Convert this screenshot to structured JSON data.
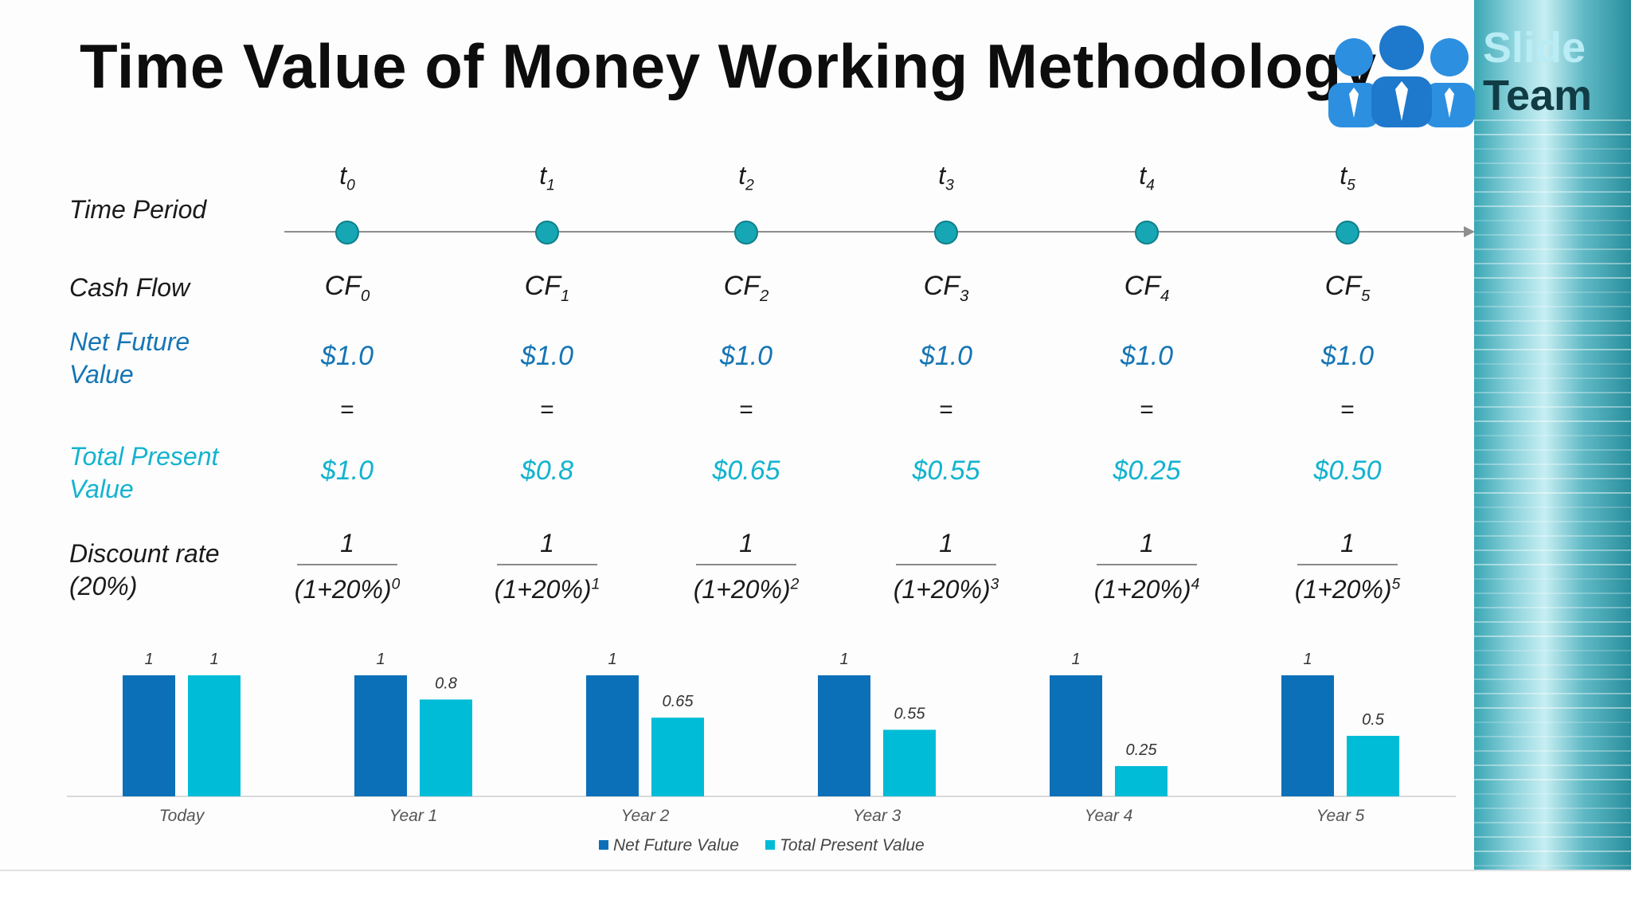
{
  "title": "Time Value of Money Working Methodology",
  "logo": {
    "line1": "Slide",
    "line2": "Team"
  },
  "row_labels": {
    "time_period": "Time Period",
    "cash_flow": "Cash Flow",
    "net_future_value_1": "Net Future",
    "net_future_value_2": "Value",
    "total_present_value_1": "Total Present",
    "total_present_value_2": "Value",
    "discount_rate_1": "Discount rate",
    "discount_rate_2": "(20%)"
  },
  "periods": [
    {
      "t": "t",
      "t_sub": "0",
      "cf": "CF",
      "cf_sub": "0",
      "nfv": "$1.0",
      "eq": "=",
      "tpv": "$1.0",
      "num": "1",
      "den": "(1+20%)",
      "den_sup": "0"
    },
    {
      "t": "t",
      "t_sub": "1",
      "cf": "CF",
      "cf_sub": "1",
      "nfv": "$1.0",
      "eq": "=",
      "tpv": "$0.8",
      "num": "1",
      "den": "(1+20%)",
      "den_sup": "1"
    },
    {
      "t": "t",
      "t_sub": "2",
      "cf": "CF",
      "cf_sub": "2",
      "nfv": "$1.0",
      "eq": "=",
      "tpv": "$0.65",
      "num": "1",
      "den": "(1+20%)",
      "den_sup": "2"
    },
    {
      "t": "t",
      "t_sub": "3",
      "cf": "CF",
      "cf_sub": "3",
      "nfv": "$1.0",
      "eq": "=",
      "tpv": "$0.55",
      "num": "1",
      "den": "(1+20%)",
      "den_sup": "3"
    },
    {
      "t": "t",
      "t_sub": "4",
      "cf": "CF",
      "cf_sub": "4",
      "nfv": "$1.0",
      "eq": "=",
      "tpv": "$0.25",
      "num": "1",
      "den": "(1+20%)",
      "den_sup": "4"
    },
    {
      "t": "t",
      "t_sub": "5",
      "cf": "CF",
      "cf_sub": "5",
      "nfv": "$1.0",
      "eq": "=",
      "tpv": "$0.50",
      "num": "1",
      "den": "(1+20%)",
      "den_sup": "5"
    }
  ],
  "colors": {
    "net_future_value": "#0b70b8",
    "total_present_value": "#00bcd6",
    "timeline_dot": "#17a6b4"
  },
  "chart_data": {
    "type": "bar",
    "categories": [
      "Today",
      "Year 1",
      "Year 2",
      "Year 3",
      "Year 4",
      "Year 5"
    ],
    "series": [
      {
        "name": "Net Future Value",
        "values": [
          1,
          1,
          1,
          1,
          1,
          1
        ],
        "labels": [
          "1",
          "1",
          "1",
          "1",
          "1",
          "1"
        ],
        "color": "#0b70b8"
      },
      {
        "name": "Total Present Value",
        "values": [
          1,
          0.8,
          0.65,
          0.55,
          0.25,
          0.5
        ],
        "labels": [
          "1",
          "0.8",
          "0.65",
          "0.55",
          "0.25",
          "0.5"
        ],
        "color": "#00bcd6"
      }
    ],
    "ylim": [
      0,
      1
    ],
    "grid": false,
    "legend": "bottom-center"
  }
}
